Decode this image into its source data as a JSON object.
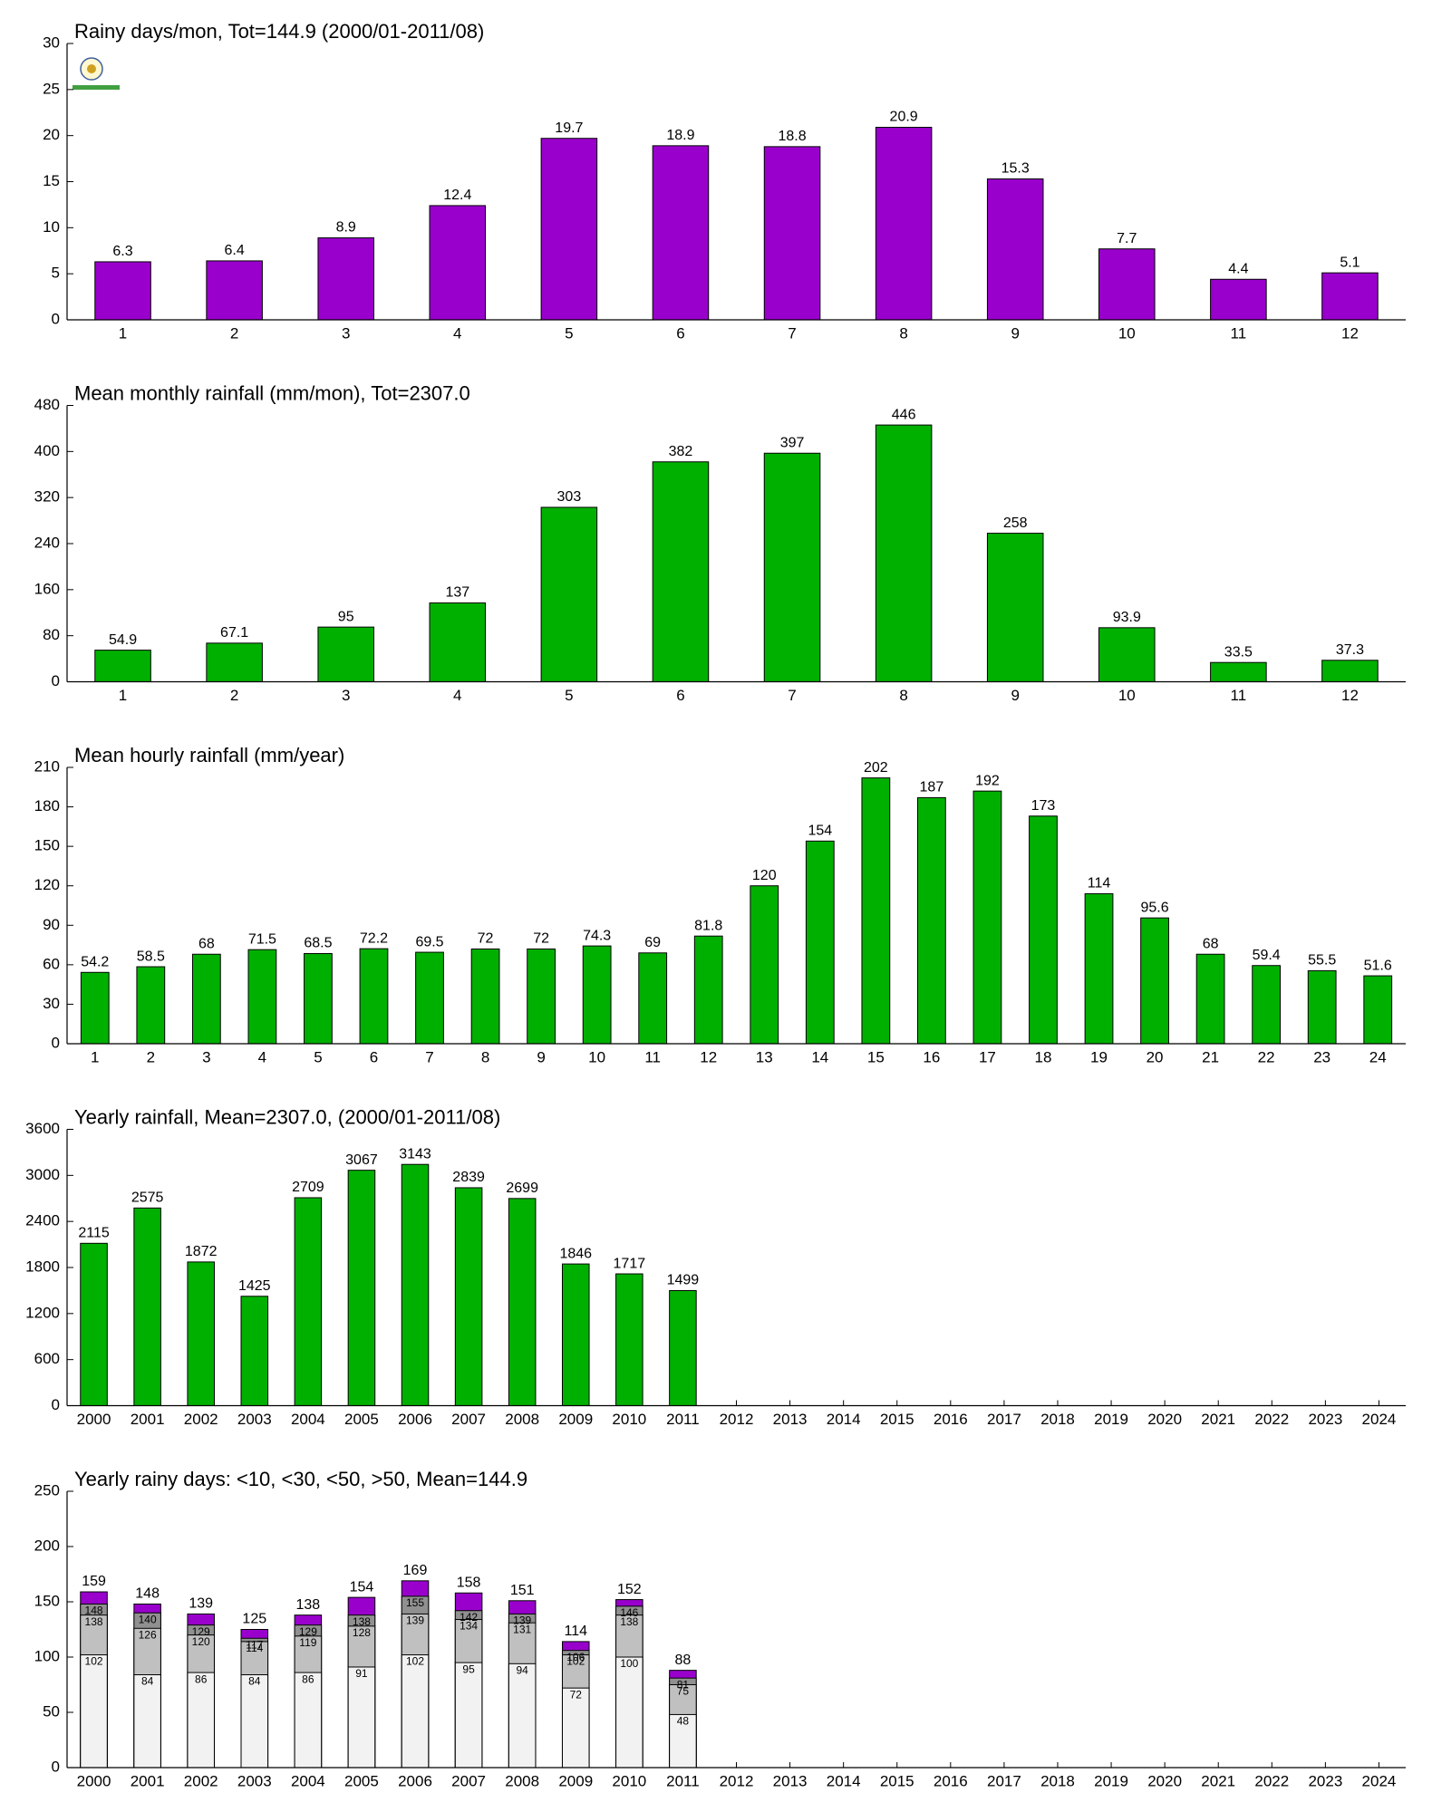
{
  "chart_data": [
    {
      "type": "bar",
      "title": "Rainy days/mon, Tot=144.9 (2000/01-2011/08)",
      "categories": [
        "1",
        "2",
        "3",
        "4",
        "5",
        "6",
        "7",
        "8",
        "9",
        "10",
        "11",
        "12"
      ],
      "values": [
        6.3,
        6.4,
        8.9,
        12.4,
        19.7,
        18.9,
        18.8,
        20.9,
        15.3,
        7.7,
        4.4,
        5.1
      ],
      "color": "#9900cc",
      "ylim": [
        0,
        30
      ],
      "yticks": [
        0,
        5,
        10,
        15,
        20,
        25,
        30
      ]
    },
    {
      "type": "bar",
      "title": "Mean monthly rainfall (mm/mon), Tot=2307.0",
      "categories": [
        "1",
        "2",
        "3",
        "4",
        "5",
        "6",
        "7",
        "8",
        "9",
        "10",
        "11",
        "12"
      ],
      "values": [
        54.9,
        67.1,
        95,
        137,
        303,
        382,
        397,
        446,
        258,
        93.9,
        33.5,
        37.3
      ],
      "color": "#00b000",
      "ylim": [
        0,
        480
      ],
      "yticks": [
        0,
        80,
        160,
        240,
        320,
        400,
        480
      ]
    },
    {
      "type": "bar",
      "title": "Mean hourly rainfall (mm/year)",
      "categories": [
        "1",
        "2",
        "3",
        "4",
        "5",
        "6",
        "7",
        "8",
        "9",
        "10",
        "11",
        "12",
        "13",
        "14",
        "15",
        "16",
        "17",
        "18",
        "19",
        "20",
        "21",
        "22",
        "23",
        "24"
      ],
      "values": [
        54.2,
        58.5,
        68,
        71.5,
        68.5,
        72.2,
        69.5,
        72,
        72,
        74.3,
        69,
        81.8,
        120,
        154,
        202,
        187,
        192,
        173,
        114,
        95.6,
        68,
        59.4,
        55.5,
        51.6
      ],
      "color": "#00b000",
      "ylim": [
        0,
        210
      ],
      "yticks": [
        0,
        30,
        60,
        90,
        120,
        150,
        180,
        210
      ]
    },
    {
      "type": "bar",
      "title": "Yearly rainfall, Mean=2307.0, (2000/01-2011/08)",
      "categories": [
        "2000",
        "2001",
        "2002",
        "2003",
        "2004",
        "2005",
        "2006",
        "2007",
        "2008",
        "2009",
        "2010",
        "2011",
        "2012",
        "2013",
        "2014",
        "2015",
        "2016",
        "2017",
        "2018",
        "2019",
        "2020",
        "2021",
        "2022",
        "2023",
        "2024"
      ],
      "values": [
        2115,
        2575,
        1872,
        1425,
        2709,
        3067,
        3143,
        2839,
        2699,
        1846,
        1717,
        1499,
        null,
        null,
        null,
        null,
        null,
        null,
        null,
        null,
        null,
        null,
        null,
        null,
        null
      ],
      "color": "#00b000",
      "ylim": [
        0,
        3600
      ],
      "yticks": [
        0,
        600,
        1200,
        1800,
        2400,
        3000,
        3600
      ]
    },
    {
      "type": "bar",
      "title": "Yearly rainy days: <10, <30, <50, >50, Mean=144.9",
      "categories": [
        "2000",
        "2001",
        "2002",
        "2003",
        "2004",
        "2005",
        "2006",
        "2007",
        "2008",
        "2009",
        "2010",
        "2011",
        "2012",
        "2013",
        "2014",
        "2015",
        "2016",
        "2017",
        "2018",
        "2019",
        "2020",
        "2021",
        "2022",
        "2023",
        "2024"
      ],
      "series": [
        {
          "color": "#9900cc",
          "values": [
            159,
            148,
            139,
            125,
            138,
            154,
            169,
            158,
            151,
            114,
            152,
            88,
            null,
            null,
            null,
            null,
            null,
            null,
            null,
            null,
            null,
            null,
            null,
            null,
            null
          ]
        },
        {
          "color": "#909090",
          "values": [
            148,
            140,
            129,
            117,
            129,
            138,
            155,
            142,
            139,
            106,
            146,
            81,
            null,
            null,
            null,
            null,
            null,
            null,
            null,
            null,
            null,
            null,
            null,
            null,
            null
          ]
        },
        {
          "color": "#c0c0c0",
          "values": [
            138,
            126,
            120,
            114,
            119,
            128,
            139,
            134,
            131,
            102,
            138,
            75,
            null,
            null,
            null,
            null,
            null,
            null,
            null,
            null,
            null,
            null,
            null,
            null,
            null
          ]
        },
        {
          "color": "#f2f2f2",
          "values": [
            102,
            84,
            86,
            84,
            86,
            91,
            102,
            95,
            94,
            72,
            100,
            48,
            null,
            null,
            null,
            null,
            null,
            null,
            null,
            null,
            null,
            null,
            null,
            null,
            null
          ]
        }
      ],
      "ylim": [
        0,
        250
      ],
      "yticks": [
        0,
        50,
        100,
        150,
        200,
        250
      ]
    }
  ]
}
